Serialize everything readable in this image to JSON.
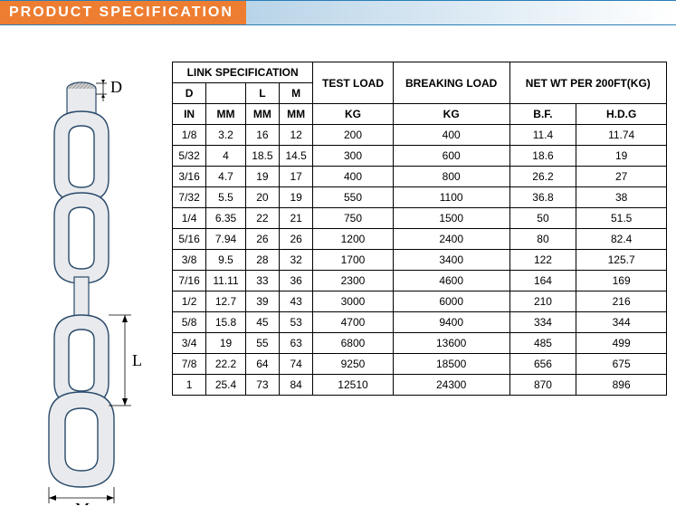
{
  "header": {
    "title": "PRODUCT  SPECIFICATION"
  },
  "diagram": {
    "labels": {
      "D": "D",
      "L": "L",
      "M": "M"
    },
    "link_fill": "#e8eaed",
    "link_stroke": "#2a4a6a",
    "dim_line_color": "#000000"
  },
  "table": {
    "group_headers": {
      "link_spec": "LINK  SPECIFICATION",
      "test_load": "TEST LOAD",
      "breaking_load": "BREAKING LOAD",
      "net_wt": "NET WT PER 200FT(KG)"
    },
    "sub_headers": {
      "D": "D",
      "L": "L",
      "M": "M",
      "BF": "B.F.",
      "HDG": "H.D.G"
    },
    "unit_headers": {
      "IN": "IN",
      "MM": "MM",
      "KG": "KG"
    },
    "rows": [
      {
        "din": "1/8",
        "dmm": "3.2",
        "l": "16",
        "m": "12",
        "test": "200",
        "break": "400",
        "bf": "11.4",
        "hdg": "11.74"
      },
      {
        "din": "5/32",
        "dmm": "4",
        "l": "18.5",
        "m": "14.5",
        "test": "300",
        "break": "600",
        "bf": "18.6",
        "hdg": "19"
      },
      {
        "din": "3/16",
        "dmm": "4.7",
        "l": "19",
        "m": "17",
        "test": "400",
        "break": "800",
        "bf": "26.2",
        "hdg": "27"
      },
      {
        "din": "7/32",
        "dmm": "5.5",
        "l": "20",
        "m": "19",
        "test": "550",
        "break": "1100",
        "bf": "36.8",
        "hdg": "38"
      },
      {
        "din": "1/4",
        "dmm": "6.35",
        "l": "22",
        "m": "21",
        "test": "750",
        "break": "1500",
        "bf": "50",
        "hdg": "51.5"
      },
      {
        "din": "5/16",
        "dmm": "7.94",
        "l": "26",
        "m": "26",
        "test": "1200",
        "break": "2400",
        "bf": "80",
        "hdg": "82.4"
      },
      {
        "din": "3/8",
        "dmm": "9.5",
        "l": "28",
        "m": "32",
        "test": "1700",
        "break": "3400",
        "bf": "122",
        "hdg": "125.7"
      },
      {
        "din": "7/16",
        "dmm": "11.11",
        "l": "33",
        "m": "36",
        "test": "2300",
        "break": "4600",
        "bf": "164",
        "hdg": "169"
      },
      {
        "din": "1/2",
        "dmm": "12.7",
        "l": "39",
        "m": "43",
        "test": "3000",
        "break": "6000",
        "bf": "210",
        "hdg": "216"
      },
      {
        "din": "5/8",
        "dmm": "15.8",
        "l": "45",
        "m": "53",
        "test": "4700",
        "break": "9400",
        "bf": "334",
        "hdg": "344"
      },
      {
        "din": "3/4",
        "dmm": "19",
        "l": "55",
        "m": "63",
        "test": "6800",
        "break": "13600",
        "bf": "485",
        "hdg": "499"
      },
      {
        "din": "7/8",
        "dmm": "22.2",
        "l": "64",
        "m": "74",
        "test": "9250",
        "break": "18500",
        "bf": "656",
        "hdg": "675"
      },
      {
        "din": "1",
        "dmm": "25.4",
        "l": "73",
        "m": "84",
        "test": "12510",
        "break": "24300",
        "bf": "870",
        "hdg": "896"
      }
    ]
  },
  "colors": {
    "header_bg": "#ed7d31",
    "header_text": "#ffffff",
    "border_line": "#2a7fb8",
    "table_border": "#000000",
    "table_text": "#000000"
  }
}
